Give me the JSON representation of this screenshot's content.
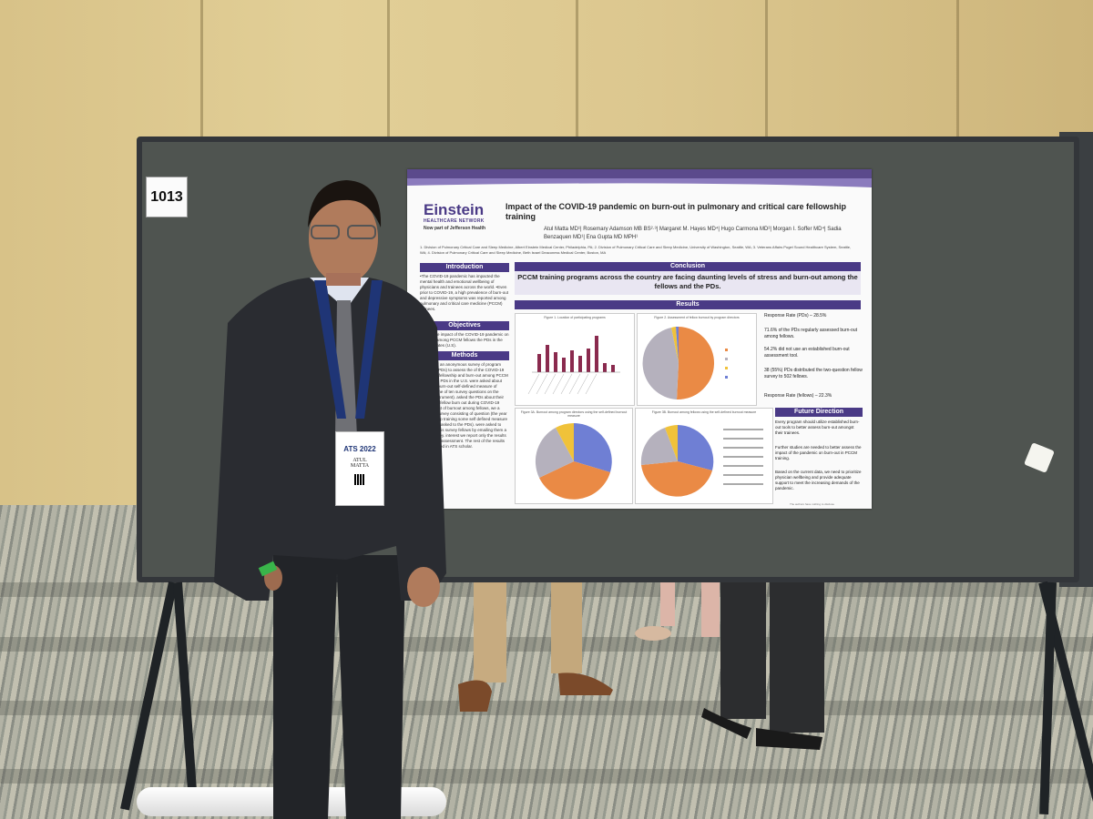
{
  "scene": {
    "booth_number": "1013",
    "badge": {
      "event": "ATS 2022",
      "first_name": "ATUL",
      "last_name": "MATTA",
      "lanyard_text": "ATS"
    }
  },
  "poster": {
    "logo": "Einstein",
    "logo_sub": "HEALTHCARE NETWORK",
    "logo_tagline": "Now part of Jefferson Health",
    "title": "Impact of the COVID-19 pandemic on burn-out in pulmonary and critical care fellowship training",
    "authors": "Atul Matta MD¹| Rosemary Adamson MB BS²·³| Margaret M. Hayes MD⁴| Hugo Carmona MD²| Morgan I. Soffer MD⁴| Sadia Benzaquen MD¹| Ena Gupta MD MPH¹",
    "affiliations": "1. Division of Pulmonary Critical Care and Sleep Medicine, Albert Einstein Medical Center, Philadelphia, PA; 2. Division of Pulmonary Critical Care and Sleep Medicine, University of Washington, Seattle, WA; 3. Veterans Affairs Puget Sound Healthcare System, Seattle, WA; 4. Division of Pulmonary Critical Care and Sleep Medicine, Beth Israel Deaconess Medical Center, Boston, MA",
    "sections": {
      "introduction": "Introduction",
      "objectives": "Objectives",
      "methods": "Methods",
      "conclusion": "Conclusion",
      "results": "Results",
      "future": "Future Direction"
    },
    "intro_text": "•The COVID-19 pandemic has impacted the mental health and emotional wellbeing of physicians and trainees across the world. •Even prior to COVID-19, a high prevalence of burn-out and depressive symptoms was reported among pulmonary and critical care medicine (PCCM) trainees.",
    "objectives_text": "assess the impact of the COVID-19 pandemic on burn-out among PCCM fellows the PDs in the United States (U.S).",
    "methods_text": "conducted an anonymous survey of program directors (PDs) to assess the of the COVID-19 on PCCM fellowship and burn-out among PCCM fellows the PDs in the U.S. were asked about their own burn-out self-defined measure of burnout. one of ten survey questions on the (Mini-Z instrument). asked the PDs about their perception fellow burn out during COVID-19 assessment of burnout among fellows, we a separate survey consisting of question (the year of fellowship training some self defined measure of burn-out asked to the PDs). were asked to distribute this survey fellows by emailing them a link to survey. interest we report only the results of burn-out assessment. The rest of the results are published in ATS scholar.",
    "conclusion_text": "PCCM training programs across the country are facing daunting levels of stress and burn-out among the fellows and the PDs.",
    "figure_captions": [
      "Figure 1. Location of participating programs",
      "Figure 2. Assessment of fellow burnout by program directors",
      "Figure 3A. Burnout among program directors using the self-defined burnout measure",
      "Figure 3B. Burnout among fellows using the self-defined burnout measure"
    ],
    "results_bullets": [
      "Response Rate (PDs) – 28.5%",
      "71.6% of the PDs regularly assessed burn-out among fellows.",
      "54.2% did not use an established burn-out assessment tool.",
      "38 (55%) PDs distributed the two-question fellow survey to 502 fellows.",
      "Response Rate (fellows) – 22.3%"
    ],
    "future_bullets": [
      "Every program should utilize established burn-out tools to better assess burn-out amongst their trainees.",
      "Further studies are needed to better assess the impact of the pandemic on burn-out in PCCM training.",
      "Based on the current data, we need to prioritize physician wellbeing and provide adequate support to meet the increasing demands of the pandemic."
    ],
    "footer_note": "The authors have nothing to disclose"
  },
  "colors": {
    "poster_accent": "#4a3a86",
    "board": "#4f5450",
    "wall": "#dcc78f",
    "pie_orange": "#ea8a45",
    "pie_gray": "#b5b1bd",
    "pie_blue": "#6f7fd4",
    "pie_yellow": "#f0c23a",
    "bar": "#8a2a4e"
  }
}
